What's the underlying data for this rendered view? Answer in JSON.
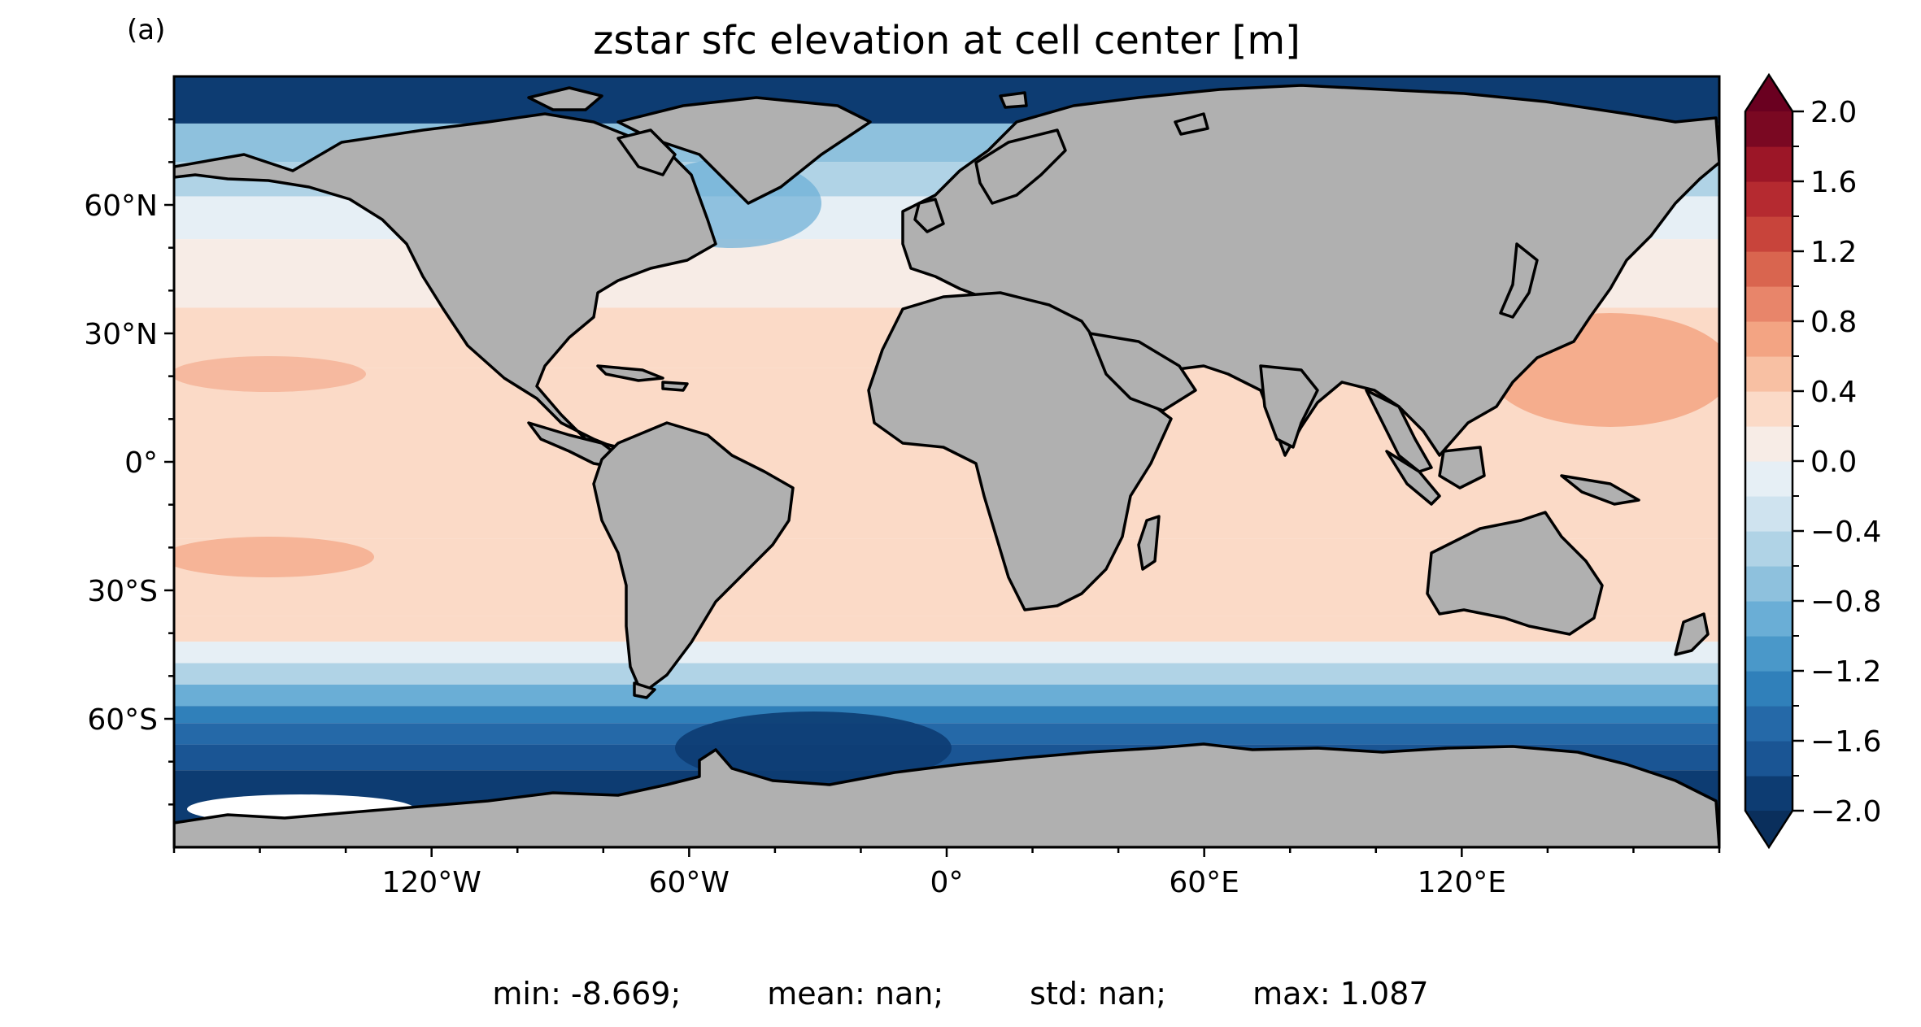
{
  "panel_label": "(a)",
  "title": "zstar sfc elevation at cell center [m]",
  "map": {
    "projection": "PlateCarree",
    "lon_range": [
      -180,
      180
    ],
    "lat_range": [
      -90,
      90
    ],
    "land_color": "#b0b0b0",
    "coastline_color": "#000000",
    "lon_ticks": [
      {
        "value": -120,
        "label": "120°W"
      },
      {
        "value": -60,
        "label": "60°W"
      },
      {
        "value": 0,
        "label": "0°"
      },
      {
        "value": 60,
        "label": "60°E"
      },
      {
        "value": 120,
        "label": "120°E"
      }
    ],
    "lat_ticks": [
      {
        "value": 60,
        "label": "60°N"
      },
      {
        "value": 30,
        "label": "30°N"
      },
      {
        "value": 0,
        "label": "0°"
      },
      {
        "value": -30,
        "label": "30°S"
      },
      {
        "value": -60,
        "label": "60°S"
      }
    ]
  },
  "colorbar": {
    "colormap": "RdBu_r",
    "range": [
      -2.0,
      2.0
    ],
    "extend": "both",
    "levels": [
      -2.0,
      -1.8,
      -1.6,
      -1.4,
      -1.2,
      -1.0,
      -0.8,
      -0.6,
      -0.4,
      -0.2,
      0.0,
      0.2,
      0.4,
      0.6,
      0.8,
      1.0,
      1.2,
      1.4,
      1.6,
      1.8,
      2.0
    ],
    "colors": [
      "#0d3c72",
      "#1a5594",
      "#2569a8",
      "#3080ba",
      "#4a98c9",
      "#6aaed6",
      "#8ec1dd",
      "#b0d3e6",
      "#cfe3ef",
      "#e6eff5",
      "#f7ece6",
      "#fbdac7",
      "#f8c0a3",
      "#f3a483",
      "#e8856a",
      "#d9654f",
      "#c8443b",
      "#b52a30",
      "#9c1627",
      "#7a0822"
    ],
    "under_color": "#0a2f5c",
    "over_color": "#6a0020",
    "ticks": [
      {
        "value": 2.0,
        "label": "2.0"
      },
      {
        "value": 1.6,
        "label": "1.6"
      },
      {
        "value": 1.2,
        "label": "1.2"
      },
      {
        "value": 0.8,
        "label": "0.8"
      },
      {
        "value": 0.4,
        "label": "0.4"
      },
      {
        "value": 0.0,
        "label": "0.0"
      },
      {
        "value": -0.4,
        "label": "−0.4"
      },
      {
        "value": -0.8,
        "label": "−0.8"
      },
      {
        "value": -1.2,
        "label": "−1.2"
      },
      {
        "value": -1.6,
        "label": "−1.6"
      },
      {
        "value": -2.0,
        "label": "−2.0"
      }
    ]
  },
  "ocean_bands": [
    {
      "lat_range": [
        79,
        90
      ],
      "value": -1.9
    },
    {
      "lat_range": [
        70,
        79
      ],
      "value": -0.8
    },
    {
      "lat_range": [
        62,
        70
      ],
      "value": -0.5
    },
    {
      "lat_range": [
        52,
        62
      ],
      "value": -0.1
    },
    {
      "lat_range": [
        36,
        52
      ],
      "value": 0.1
    },
    {
      "lat_range": [
        22,
        36
      ],
      "value": 0.3
    },
    {
      "lat_range": [
        -18,
        22
      ],
      "value": 0.2
    },
    {
      "lat_range": [
        -36,
        -18
      ],
      "value": 0.3
    },
    {
      "lat_range": [
        -42,
        -36
      ],
      "value": 0.2
    },
    {
      "lat_range": [
        -47,
        -42
      ],
      "value": -0.1
    },
    {
      "lat_range": [
        -52,
        -47
      ],
      "value": -0.5
    },
    {
      "lat_range": [
        -57,
        -52
      ],
      "value": -0.9
    },
    {
      "lat_range": [
        -61,
        -57
      ],
      "value": -1.3
    },
    {
      "lat_range": [
        -66,
        -61
      ],
      "value": -1.6
    },
    {
      "lat_range": [
        -72,
        -66
      ],
      "value": -1.8
    },
    {
      "lat_range": [
        -90,
        -72
      ],
      "value": -1.9
    }
  ],
  "stats": {
    "min": "min: -8.669;",
    "mean": "mean: nan;",
    "std": "std: nan;",
    "max": "max: 1.087"
  }
}
